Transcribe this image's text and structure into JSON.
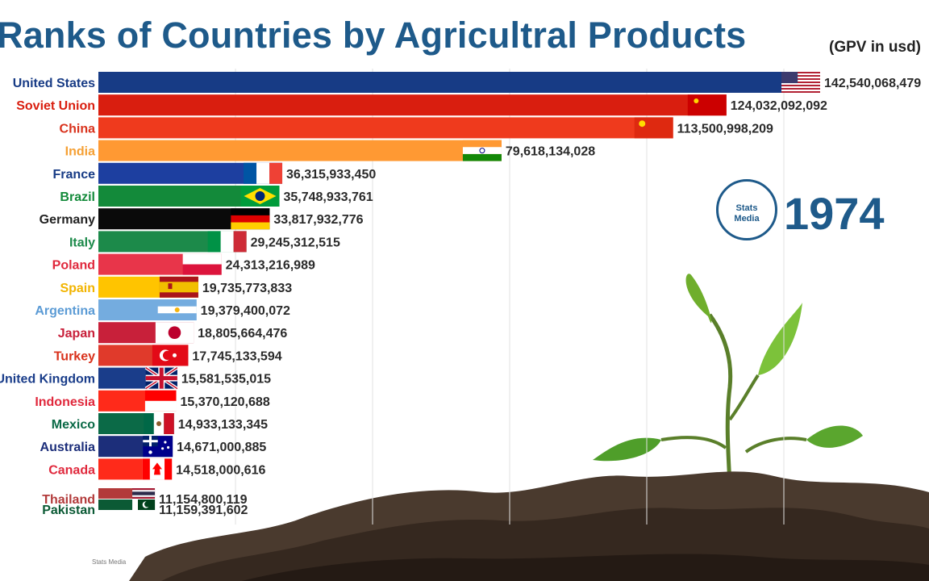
{
  "title": "Ranks of Countries by Agricultral Products",
  "subtitle": "(GPV in usd)",
  "year": "1974",
  "logo_text": "Stats\nMedia",
  "watermark": "Stats Media",
  "chart_data": {
    "type": "bar",
    "orientation": "horizontal",
    "title": "Ranks of Countries by Agricultral Products",
    "subtitle": "(GPV in usd)",
    "annotation": "1974",
    "categories": [
      "United States",
      "Soviet Union",
      "China",
      "India",
      "France",
      "Brazil",
      "Germany",
      "Italy",
      "Poland",
      "Spain",
      "Argentina",
      "Japan",
      "Turkey",
      "United Kingdom",
      "Indonesia",
      "Mexico",
      "Australia",
      "Canada",
      "Thailand",
      "Pakistan"
    ],
    "values": [
      142540068479,
      124032092092,
      113500998209,
      79618134028,
      36315933450,
      35748933761,
      33817932776,
      29245312515,
      24313216989,
      19735773833,
      19379400072,
      18805664476,
      17745133594,
      15581535015,
      15370120688,
      14933133345,
      14671000885,
      14518000616,
      11154800119,
      11159391602
    ],
    "value_labels": [
      "142,540,068,479",
      "124,032,092,092",
      "113,500,998,209",
      "79,618,134,028",
      "36,315,933,450",
      "35,748,933,761",
      "33,817,932,776",
      "29,245,312,515",
      "24,313,216,989",
      "19,735,773,833",
      "19,379,400,072",
      "18,805,664,476",
      "17,745,133,594",
      "15,581,535,015",
      "15,370,120,688",
      "14,933,133,345",
      "14,671,000,885",
      "14,518,000,616",
      "11,154,800,119",
      "11,159,391,602"
    ],
    "colors": [
      "#173b85",
      "#d91e0f",
      "#ef3a1d",
      "#ff9933",
      "#1d3fa0",
      "#138a3a",
      "#0a0a0a",
      "#1c8a4a",
      "#e8354a",
      "#ffc400",
      "#74acdf",
      "#c8203a",
      "#e03a2b",
      "#1a3d8a",
      "#ff2a1a",
      "#0b6a47",
      "#1c2e7a",
      "#ff2a1a",
      "#b23a3a",
      "#0b5a35"
    ],
    "label_colors": [
      "#173b85",
      "#d91e0f",
      "#d9321c",
      "#f5a034",
      "#173b85",
      "#138a3a",
      "#222222",
      "#1c8a4a",
      "#e0283c",
      "#f2b400",
      "#5b9bd5",
      "#c8203a",
      "#d9321c",
      "#1a3d8a",
      "#e0283c",
      "#0b6a47",
      "#1c2e7a",
      "#e0283c",
      "#b23a3a",
      "#0b5a35"
    ],
    "flags": [
      "us-flag",
      "soviet-flag",
      "china-flag",
      "india-flag",
      "france-flag",
      "brazil-flag",
      "germany-flag",
      "italy-flag",
      "poland-flag",
      "spain-flag",
      "argentina-flag",
      "japan-flag",
      "turkey-flag",
      "uk-flag",
      "indonesia-flag",
      "mexico-flag",
      "australia-flag",
      "canada-flag",
      "thailand-flag",
      "pakistan-flag"
    ],
    "grid": true,
    "legend": "none"
  }
}
